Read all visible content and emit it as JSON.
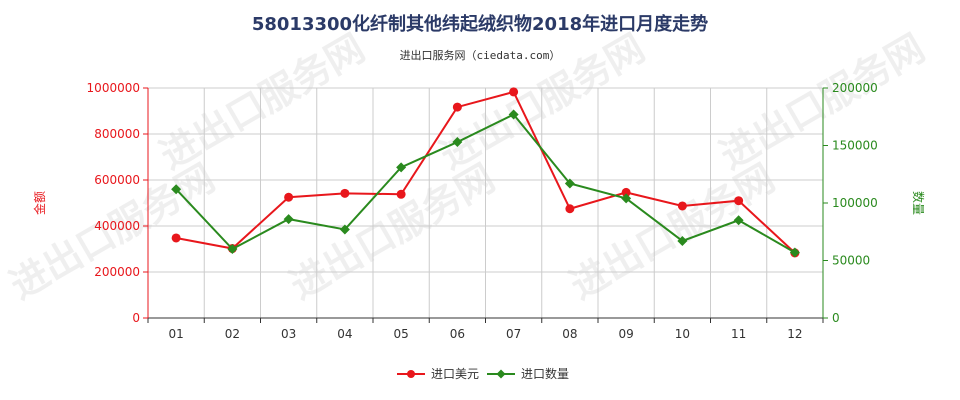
{
  "chart_data": {
    "type": "line",
    "title": "58013300化纤制其他纬起绒织物2018年进口月度走势",
    "subtitle": "进出口服务网（ciedata.com）",
    "categories": [
      "01",
      "02",
      "03",
      "04",
      "05",
      "06",
      "07",
      "08",
      "09",
      "10",
      "11",
      "12"
    ],
    "y_left": {
      "label": "金额",
      "ylim": [
        0,
        1000000
      ],
      "ticks": [
        0,
        200000,
        400000,
        600000,
        800000,
        1000000
      ],
      "color": "#e8171c"
    },
    "y_right": {
      "label": "数量",
      "ylim": [
        0,
        200000
      ],
      "ticks": [
        0,
        50000,
        100000,
        150000,
        200000
      ],
      "color": "#2a8a1e"
    },
    "series": [
      {
        "name": "进口美元",
        "axis": "left",
        "color": "#e8171c",
        "marker": "circle",
        "values": [
          348000,
          302000,
          525000,
          542000,
          538000,
          917000,
          983000,
          475000,
          546000,
          487000,
          510000,
          283000
        ]
      },
      {
        "name": "进口数量",
        "axis": "right",
        "color": "#2a8a1e",
        "marker": "diamond",
        "values": [
          112000,
          60000,
          86000,
          77000,
          131000,
          153000,
          177000,
          117000,
          104000,
          67000,
          85000,
          57000
        ]
      }
    ],
    "grid": true,
    "legend": "bottom-center",
    "watermark": "进出口服务网"
  }
}
